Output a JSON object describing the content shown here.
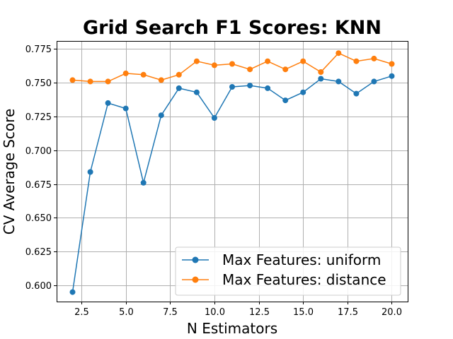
{
  "chart_data": {
    "type": "line",
    "title": "Grid Search F1 Scores: KNN",
    "xlabel": "N Estimators",
    "ylabel": "CV Average Score",
    "xlim": [
      1.1,
      20.9
    ],
    "ylim": [
      0.588,
      0.781
    ],
    "xticks": [
      2.5,
      5.0,
      7.5,
      10.0,
      12.5,
      15.0,
      17.5,
      20.0
    ],
    "xtick_labels": [
      "2.5",
      "5.0",
      "7.5",
      "10.0",
      "12.5",
      "15.0",
      "17.5",
      "20.0"
    ],
    "yticks": [
      0.6,
      0.625,
      0.65,
      0.675,
      0.7,
      0.725,
      0.75,
      0.775
    ],
    "ytick_labels": [
      "0.600",
      "0.625",
      "0.650",
      "0.675",
      "0.700",
      "0.725",
      "0.750",
      "0.775"
    ],
    "grid": true,
    "legend_position": "lower-right",
    "x": [
      2,
      3,
      4,
      5,
      6,
      7,
      8,
      9,
      10,
      11,
      12,
      13,
      14,
      15,
      16,
      17,
      18,
      19,
      20
    ],
    "series": [
      {
        "name": "Max Features: uniform",
        "color": "#1f77b4",
        "values": [
          0.595,
          0.684,
          0.735,
          0.731,
          0.676,
          0.726,
          0.746,
          0.743,
          0.724,
          0.747,
          0.748,
          0.746,
          0.737,
          0.743,
          0.753,
          0.751,
          0.742,
          0.751,
          0.755
        ]
      },
      {
        "name": "Max Features: distance",
        "color": "#ff7f0e",
        "values": [
          0.752,
          0.751,
          0.751,
          0.757,
          0.756,
          0.752,
          0.756,
          0.766,
          0.763,
          0.764,
          0.76,
          0.766,
          0.76,
          0.766,
          0.758,
          0.772,
          0.766,
          0.768,
          0.764
        ]
      }
    ]
  }
}
